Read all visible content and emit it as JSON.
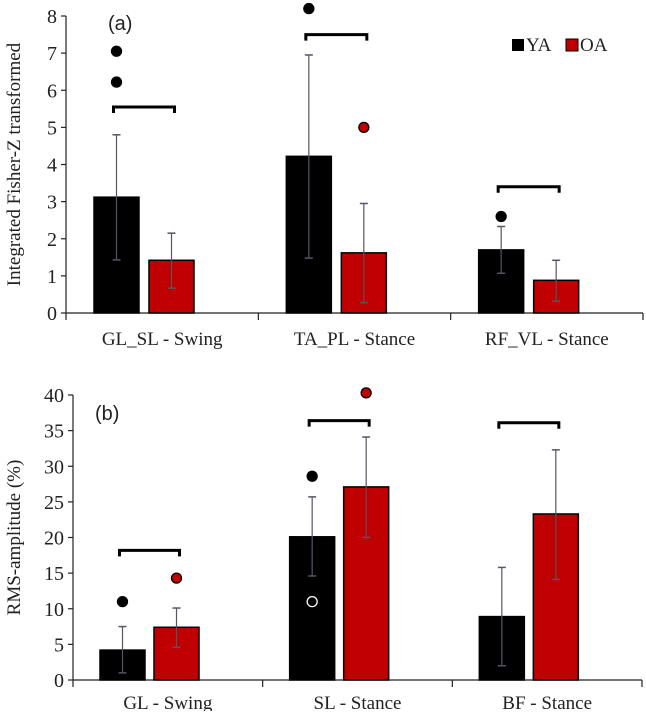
{
  "legend": [
    {
      "label": "YA",
      "color": "#000000"
    },
    {
      "label": "OA",
      "color": "#c00000"
    }
  ],
  "chart_data": [
    {
      "type": "bar",
      "panel_label": "(a)",
      "ylabel": "Integrated Fisher-Z transformed",
      "ylim": [
        0,
        8
      ],
      "yticks": [
        "0",
        "1",
        "2",
        "3",
        "4",
        "5",
        "6",
        "7",
        "8"
      ],
      "categories": [
        "GL_SL - Swing",
        "TA_PL - Stance",
        "RF_VL - Stance"
      ],
      "legend_position": "top-right",
      "series": [
        {
          "name": "YA",
          "color": "#000000",
          "values": [
            3.12,
            4.22,
            1.7
          ],
          "err_low": [
            1.43,
            1.48,
            1.07
          ],
          "err_high": [
            4.8,
            6.95,
            2.33
          ]
        },
        {
          "name": "OA",
          "color": "#c00000",
          "values": [
            1.42,
            1.62,
            0.88
          ],
          "err_low": [
            0.67,
            0.28,
            0.32
          ],
          "err_high": [
            2.15,
            2.95,
            1.42
          ]
        }
      ],
      "outliers": [
        {
          "category": 0,
          "series": "YA",
          "value": 7.05,
          "style": "filled"
        },
        {
          "category": 0,
          "series": "YA",
          "value": 6.22,
          "style": "filled"
        },
        {
          "category": 1,
          "series": "YA",
          "value": 8.2,
          "style": "filled"
        },
        {
          "category": 1,
          "series": "OA",
          "value": 5.0,
          "style": "filled"
        },
        {
          "category": 2,
          "series": "YA",
          "value": 2.6,
          "style": "filled"
        }
      ],
      "significance_brackets": [
        {
          "category": 0,
          "value": 5.55
        },
        {
          "category": 1,
          "value": 7.5
        },
        {
          "category": 2,
          "value": 3.4
        }
      ]
    },
    {
      "type": "bar",
      "panel_label": "(b)",
      "ylabel": "RMS-amplitude (%)",
      "ylim": [
        0,
        40
      ],
      "yticks": [
        "0",
        "5",
        "10",
        "15",
        "20",
        "25",
        "30",
        "35",
        "40"
      ],
      "categories": [
        "GL - Swing",
        "SL - Stance",
        "BF - Stance"
      ],
      "series": [
        {
          "name": "YA",
          "color": "#000000",
          "values": [
            4.2,
            20.1,
            8.9
          ],
          "err_low": [
            1.0,
            14.6,
            2.0
          ],
          "err_high": [
            7.5,
            25.7,
            15.8
          ]
        },
        {
          "name": "OA",
          "color": "#c00000",
          "values": [
            7.4,
            27.1,
            23.3
          ],
          "err_low": [
            4.6,
            20.0,
            14.1
          ],
          "err_high": [
            10.1,
            34.1,
            32.3
          ]
        }
      ],
      "outliers": [
        {
          "category": 0,
          "series": "YA",
          "value": 11.0,
          "style": "filled"
        },
        {
          "category": 0,
          "series": "OA",
          "value": 14.3,
          "style": "filled"
        },
        {
          "category": 1,
          "series": "YA",
          "value": 28.6,
          "style": "filled"
        },
        {
          "category": 1,
          "series": "YA",
          "value": 11.0,
          "style": "hollow"
        },
        {
          "category": 1,
          "series": "OA",
          "value": 40.3,
          "style": "filled"
        }
      ],
      "significance_brackets": [
        {
          "category": 0,
          "value": 18.2
        },
        {
          "category": 1,
          "value": 36.4
        },
        {
          "category": 2,
          "value": 36.1
        }
      ]
    }
  ]
}
